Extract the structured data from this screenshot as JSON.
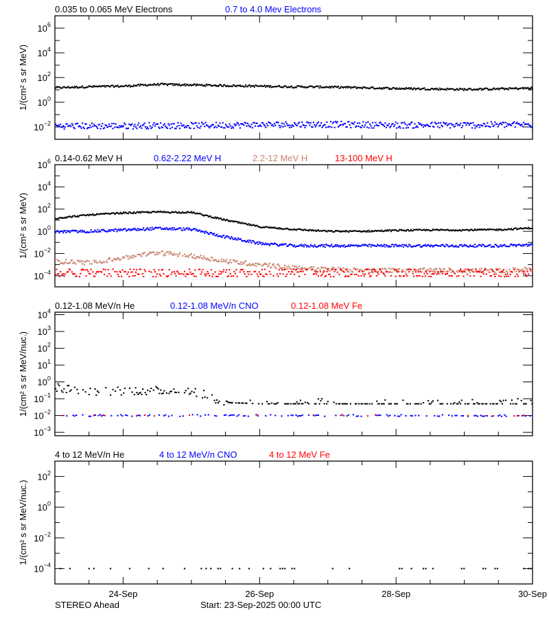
{
  "footer": {
    "spacecraft": "STEREO Ahead",
    "start": "Start: 23-Sep-2025 00:00 UTC"
  },
  "colors": {
    "black": "#000000",
    "blue": "#0000ff",
    "brown": "#c8806a",
    "red": "#ff0000"
  },
  "x_axis": {
    "range": [
      "2025-09-23T00:00",
      "2025-09-30T00:00"
    ],
    "ticks": [
      {
        "t": "2025-09-24T00:00",
        "label": "24-Sep"
      },
      {
        "t": "2025-09-26T00:00",
        "label": "26-Sep"
      },
      {
        "t": "2025-09-28T00:00",
        "label": "28-Sep"
      },
      {
        "t": "2025-09-30T00:00",
        "label": "30-Sep"
      }
    ]
  },
  "chart_data": [
    {
      "type": "scatter",
      "ylabel": "1/(cm² s sr MeV)",
      "yscale": "log",
      "ylim": [
        0.001,
        10000000
      ],
      "yticks": [
        {
          "v": 1000000.0,
          "exp": "6"
        },
        {
          "v": 10000.0,
          "exp": "4"
        },
        {
          "v": 100.0,
          "exp": "2"
        },
        {
          "v": 1,
          "exp": "0"
        },
        {
          "v": 0.01,
          "exp": "-2"
        }
      ],
      "x": [
        "2025-09-23T00:00",
        "2025-09-23T12:00",
        "2025-09-24T00:00",
        "2025-09-24T12:00",
        "2025-09-25T00:00",
        "2025-09-25T12:00",
        "2025-09-26T00:00",
        "2025-09-26T12:00",
        "2025-09-27T00:00",
        "2025-09-27T12:00",
        "2025-09-28T00:00",
        "2025-09-28T12:00",
        "2025-09-29T00:00",
        "2025-09-29T12:00",
        "2025-09-30T00:00"
      ],
      "series": [
        {
          "name": "0.035 to 0.065 MeV Electrons",
          "color": "#000000",
          "values": [
            15,
            18,
            20,
            28,
            25,
            22,
            20,
            18,
            17,
            15,
            13,
            12,
            11,
            12,
            14
          ]
        },
        {
          "name": "0.7 to 4.0 Mev Electrons",
          "color": "#0000ff",
          "values": [
            0.012,
            0.012,
            0.012,
            0.013,
            0.013,
            0.014,
            0.015,
            0.016,
            0.016,
            0.015,
            0.014,
            0.014,
            0.014,
            0.015,
            0.015
          ]
        }
      ]
    },
    {
      "type": "scatter",
      "ylabel": "1/(cm² s sr MeV)",
      "yscale": "log",
      "ylim": [
        1e-05,
        1000000
      ],
      "yticks": [
        {
          "v": 1000000.0,
          "exp": "6"
        },
        {
          "v": 10000.0,
          "exp": "4"
        },
        {
          "v": 100.0,
          "exp": "2"
        },
        {
          "v": 1,
          "exp": "0"
        },
        {
          "v": 0.01,
          "exp": "-2"
        },
        {
          "v": 0.0001,
          "exp": "-4"
        }
      ],
      "x": [
        "2025-09-23T00:00",
        "2025-09-23T12:00",
        "2025-09-24T00:00",
        "2025-09-24T12:00",
        "2025-09-25T00:00",
        "2025-09-25T12:00",
        "2025-09-26T00:00",
        "2025-09-26T12:00",
        "2025-09-27T00:00",
        "2025-09-27T12:00",
        "2025-09-28T00:00",
        "2025-09-28T12:00",
        "2025-09-29T00:00",
        "2025-09-29T12:00",
        "2025-09-30T00:00"
      ],
      "series": [
        {
          "name": "0.14-0.62 MeV H",
          "color": "#000000",
          "values": [
            15,
            30,
            45,
            55,
            50,
            10,
            2.5,
            1.5,
            1.0,
            1.0,
            1.2,
            1.3,
            1.3,
            1.4,
            2.0
          ]
        },
        {
          "name": "0.62-2.22 MeV H",
          "color": "#0000ff",
          "values": [
            0.9,
            1.0,
            1.3,
            1.8,
            1.5,
            0.3,
            0.08,
            0.05,
            0.05,
            0.05,
            0.05,
            0.05,
            0.05,
            0.05,
            0.06
          ]
        },
        {
          "name": "2.2-12 MeV H",
          "color": "#c8806a",
          "values": [
            0.002,
            0.0015,
            0.004,
            0.012,
            0.006,
            0.002,
            0.001,
            0.0005,
            0.0004,
            0.0003,
            0.0003,
            0.0003,
            0.0003,
            0.0003,
            0.0004
          ]
        },
        {
          "name": "13-100 MeV H",
          "color": "#ff0000",
          "values": [
            0.00018,
            0.00018,
            0.00018,
            0.00018,
            0.00018,
            0.00018,
            0.00018,
            0.00018,
            0.00018,
            0.00018,
            0.00018,
            0.00018,
            0.00018,
            0.00018,
            0.00018
          ]
        }
      ]
    },
    {
      "type": "scatter",
      "ylabel": "1/(cm² s sr MeV/nuc.)",
      "yscale": "log",
      "ylim": [
        0.00063,
        14000
      ],
      "yticks": [
        {
          "v": 10000.0,
          "exp": "4"
        },
        {
          "v": 1000.0,
          "exp": "3"
        },
        {
          "v": 100.0,
          "exp": "2"
        },
        {
          "v": 10,
          "exp": "1"
        },
        {
          "v": 1,
          "exp": "0"
        },
        {
          "v": 0.1,
          "exp": "-1"
        },
        {
          "v": 0.01,
          "exp": "-2"
        },
        {
          "v": 0.001,
          "exp": "-3"
        }
      ],
      "x": [
        "2025-09-23T00:00",
        "2025-09-23T12:00",
        "2025-09-24T00:00",
        "2025-09-24T12:00",
        "2025-09-25T00:00",
        "2025-09-25T12:00",
        "2025-09-26T00:00",
        "2025-09-26T12:00",
        "2025-09-27T00:00",
        "2025-09-27T12:00",
        "2025-09-28T00:00",
        "2025-09-28T12:00",
        "2025-09-29T00:00",
        "2025-09-29T12:00",
        "2025-09-30T00:00"
      ],
      "series": [
        {
          "name": "0.12-1.08 MeV/n He",
          "color": "#000000",
          "values": [
            0.5,
            0.25,
            0.3,
            0.3,
            0.3,
            0.06,
            0.05,
            0.05,
            0.05,
            0.05,
            0.05,
            0.05,
            0.05,
            0.05,
            0.05
          ]
        },
        {
          "name": "0.12-1.08 MeV/n CNO",
          "color": "#0000ff",
          "values": [
            0.01,
            0.01,
            0.01,
            0.01,
            0.01,
            0.01,
            0.01,
            0.01,
            0.01,
            0.01,
            0.01,
            0.01,
            0.01,
            0.01,
            0.01
          ]
        },
        {
          "name": "0.12-1.08 MeV Fe",
          "color": "#ff0000",
          "values": [
            0.01,
            0.01,
            0.01,
            0.01,
            0.01,
            0.01,
            0.01,
            0.01,
            0.01,
            0.01,
            0.01,
            0.01,
            0.01,
            0.01,
            0.01
          ]
        }
      ]
    },
    {
      "type": "scatter",
      "ylabel": "1/(cm² s sr MeV/nuc.)",
      "yscale": "log",
      "ylim": [
        1e-05,
        1000
      ],
      "yticks": [
        {
          "v": 100.0,
          "exp": "2"
        },
        {
          "v": 1,
          "exp": "0"
        },
        {
          "v": 0.01,
          "exp": "-2"
        },
        {
          "v": 0.0001,
          "exp": "-4"
        }
      ],
      "x": [
        "2025-09-23T00:00",
        "2025-09-23T12:00",
        "2025-09-24T00:00",
        "2025-09-24T12:00",
        "2025-09-25T00:00",
        "2025-09-25T12:00",
        "2025-09-26T00:00",
        "2025-09-26T12:00",
        "2025-09-27T00:00",
        "2025-09-27T12:00",
        "2025-09-28T00:00",
        "2025-09-28T12:00",
        "2025-09-29T00:00",
        "2025-09-29T12:00",
        "2025-09-30T00:00"
      ],
      "series": [
        {
          "name": "4 to 12 MeV/n He",
          "color": "#000000",
          "values": [
            0.0001,
            0.0001,
            0.0001,
            0.0001,
            0.0001,
            0.0001,
            0.0001,
            0.0001,
            0.0001,
            0.0001,
            0.0001,
            0.0001,
            0.0001,
            0.0001,
            0.0001
          ]
        },
        {
          "name": "4 to 12 MeV/n CNO",
          "color": "#0000ff",
          "values": []
        },
        {
          "name": "4 to 12 MeV Fe",
          "color": "#ff0000",
          "values": []
        }
      ]
    }
  ]
}
